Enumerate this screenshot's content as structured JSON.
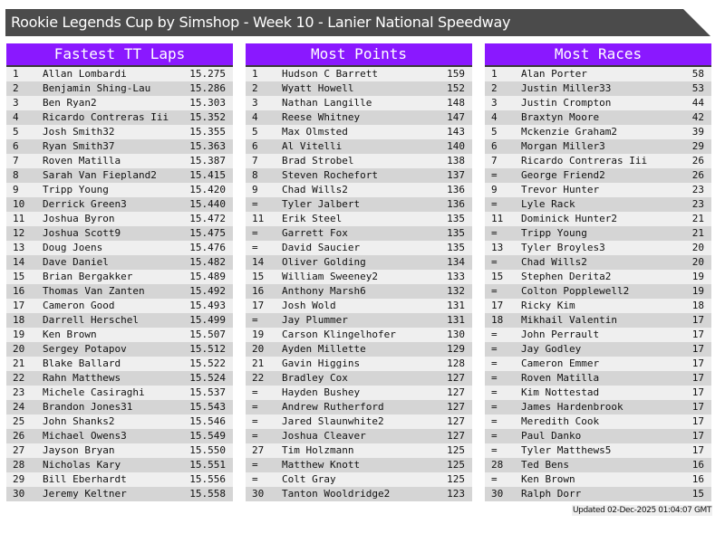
{
  "title": "Rookie Legends Cup by Simshop - Week 10 - Lanier National Speedway",
  "colors": {
    "header_bg": "#8a18ff",
    "title_bg": "#4b4b4b"
  },
  "updated": "Updated 02-Dec-2025 01:04:07 GMT",
  "panels": [
    {
      "title": "Fastest TT Laps",
      "rows": [
        [
          "1",
          "Allan Lombardi",
          "15.275"
        ],
        [
          "2",
          "Benjamin Shing-Lau",
          "15.286"
        ],
        [
          "3",
          "Ben Ryan2",
          "15.303"
        ],
        [
          "4",
          "Ricardo Contreras Iii",
          "15.352"
        ],
        [
          "5",
          "Josh Smith32",
          "15.355"
        ],
        [
          "6",
          "Ryan Smith37",
          "15.363"
        ],
        [
          "7",
          "Roven Matilla",
          "15.387"
        ],
        [
          "8",
          "Sarah Van Fiepland2",
          "15.415"
        ],
        [
          "9",
          "Tripp Young",
          "15.420"
        ],
        [
          "10",
          "Derrick Green3",
          "15.440"
        ],
        [
          "11",
          "Joshua Byron",
          "15.472"
        ],
        [
          "12",
          "Joshua Scott9",
          "15.475"
        ],
        [
          "13",
          "Doug Joens",
          "15.476"
        ],
        [
          "14",
          "Dave Daniel",
          "15.482"
        ],
        [
          "15",
          "Brian Bergakker",
          "15.489"
        ],
        [
          "16",
          "Thomas Van Zanten",
          "15.492"
        ],
        [
          "17",
          "Cameron Good",
          "15.493"
        ],
        [
          "18",
          "Darrell Herschel",
          "15.499"
        ],
        [
          "19",
          "Ken Brown",
          "15.507"
        ],
        [
          "20",
          "Sergey Potapov",
          "15.512"
        ],
        [
          "21",
          "Blake Ballard",
          "15.522"
        ],
        [
          "22",
          "Rahn Matthews",
          "15.524"
        ],
        [
          "23",
          "Michele Casiraghi",
          "15.537"
        ],
        [
          "24",
          "Brandon Jones31",
          "15.543"
        ],
        [
          "25",
          "John Shanks2",
          "15.546"
        ],
        [
          "26",
          "Michael Owens3",
          "15.549"
        ],
        [
          "27",
          "Jayson Bryan",
          "15.550"
        ],
        [
          "28",
          "Nicholas Kary",
          "15.551"
        ],
        [
          "29",
          "Bill Eberhardt",
          "15.556"
        ],
        [
          "30",
          "Jeremy Keltner",
          "15.558"
        ]
      ]
    },
    {
      "title": "Most Points",
      "rows": [
        [
          "1",
          "Hudson C Barrett",
          "159"
        ],
        [
          "2",
          "Wyatt Howell",
          "152"
        ],
        [
          "3",
          "Nathan Langille",
          "148"
        ],
        [
          "4",
          "Reese Whitney",
          "147"
        ],
        [
          "5",
          "Max Olmsted",
          "143"
        ],
        [
          "6",
          "Al Vitelli",
          "140"
        ],
        [
          "7",
          "Brad Strobel",
          "138"
        ],
        [
          "8",
          "Steven Rochefort",
          "137"
        ],
        [
          "9",
          "Chad Wills2",
          "136"
        ],
        [
          "=",
          "Tyler Jalbert",
          "136"
        ],
        [
          "11",
          "Erik Steel",
          "135"
        ],
        [
          "=",
          "Garrett Fox",
          "135"
        ],
        [
          "=",
          "David Saucier",
          "135"
        ],
        [
          "14",
          "Oliver Golding",
          "134"
        ],
        [
          "15",
          "William Sweeney2",
          "133"
        ],
        [
          "16",
          "Anthony Marsh6",
          "132"
        ],
        [
          "17",
          "Josh Wold",
          "131"
        ],
        [
          "=",
          "Jay Plummer",
          "131"
        ],
        [
          "19",
          "Carson Klingelhofer",
          "130"
        ],
        [
          "20",
          "Ayden Millette",
          "129"
        ],
        [
          "21",
          "Gavin Higgins",
          "128"
        ],
        [
          "22",
          "Bradley Cox",
          "127"
        ],
        [
          "=",
          "Hayden Bushey",
          "127"
        ],
        [
          "=",
          "Andrew Rutherford",
          "127"
        ],
        [
          "=",
          "Jared Slaunwhite2",
          "127"
        ],
        [
          "=",
          "Joshua Cleaver",
          "127"
        ],
        [
          "27",
          "Tim Holzmann",
          "125"
        ],
        [
          "=",
          "Matthew Knott",
          "125"
        ],
        [
          "=",
          "Colt Gray",
          "125"
        ],
        [
          "30",
          "Tanton Wooldridge2",
          "123"
        ]
      ]
    },
    {
      "title": "Most Races",
      "rows": [
        [
          "1",
          "Alan Porter",
          "58"
        ],
        [
          "2",
          "Justin Miller33",
          "53"
        ],
        [
          "3",
          "Justin Crompton",
          "44"
        ],
        [
          "4",
          "Braxtyn Moore",
          "42"
        ],
        [
          "5",
          "Mckenzie Graham2",
          "39"
        ],
        [
          "6",
          "Morgan Miller3",
          "29"
        ],
        [
          "7",
          "Ricardo Contreras Iii",
          "26"
        ],
        [
          "=",
          "George Friend2",
          "26"
        ],
        [
          "9",
          "Trevor Hunter",
          "23"
        ],
        [
          "=",
          "Lyle Rack",
          "23"
        ],
        [
          "11",
          "Dominick Hunter2",
          "21"
        ],
        [
          "=",
          "Tripp Young",
          "21"
        ],
        [
          "13",
          "Tyler Broyles3",
          "20"
        ],
        [
          "=",
          "Chad Wills2",
          "20"
        ],
        [
          "15",
          "Stephen Derita2",
          "19"
        ],
        [
          "=",
          "Colton Popplewell2",
          "19"
        ],
        [
          "17",
          "Ricky Kim",
          "18"
        ],
        [
          "18",
          "Mikhail Valentin",
          "17"
        ],
        [
          "=",
          "John Perrault",
          "17"
        ],
        [
          "=",
          "Jay Godley",
          "17"
        ],
        [
          "=",
          "Cameron Emmer",
          "17"
        ],
        [
          "=",
          "Roven Matilla",
          "17"
        ],
        [
          "=",
          "Kim Nottestad",
          "17"
        ],
        [
          "=",
          "James Hardenbrook",
          "17"
        ],
        [
          "=",
          "Meredith Cook",
          "17"
        ],
        [
          "=",
          "Paul Danko",
          "17"
        ],
        [
          "=",
          "Tyler Matthews5",
          "17"
        ],
        [
          "28",
          "Ted Bens",
          "16"
        ],
        [
          "=",
          "Ken Brown",
          "16"
        ],
        [
          "30",
          "Ralph Dorr",
          "15"
        ]
      ]
    }
  ]
}
